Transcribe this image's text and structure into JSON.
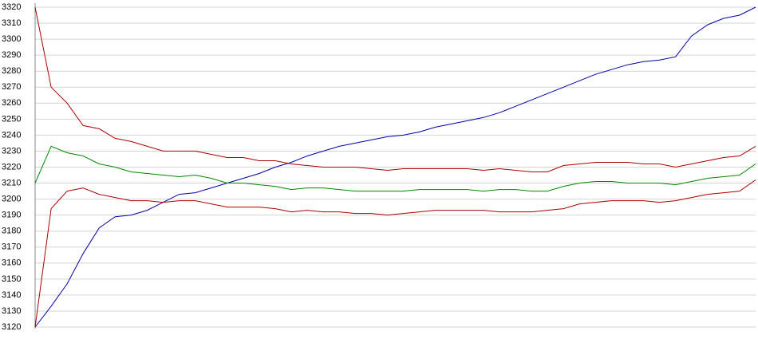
{
  "chart_data": {
    "type": "line",
    "categories": [
      null,
      null,
      null,
      null,
      null,
      null,
      null,
      null,
      null,
      null,
      null,
      null,
      null,
      null,
      null,
      null,
      null,
      null,
      null,
      null,
      null,
      null,
      null,
      null,
      null,
      null,
      null,
      null,
      null,
      null,
      null,
      null,
      null,
      null,
      null,
      null,
      null,
      null,
      null,
      null,
      null,
      null,
      null,
      null,
      null,
      null
    ],
    "series": [
      {
        "color": "#0000aa",
        "values": [
          3120,
          3133,
          3147,
          3166,
          3182,
          3189,
          3190,
          3193,
          3198,
          3203,
          3204,
          3207,
          3210,
          3213,
          3216,
          3220,
          3223,
          3227,
          3230,
          3233,
          3235,
          3237,
          3239,
          3240,
          3242,
          3245,
          3247,
          3249,
          3251,
          3254,
          3258,
          3262,
          3266,
          3270,
          3274,
          3278,
          3281,
          3284,
          3286,
          3287,
          3289,
          3302,
          3309,
          3313,
          3315,
          3320
        ]
      },
      {
        "color": "#aa0000",
        "values": [
          3320,
          3270,
          3260,
          3246,
          3244,
          3238,
          3236,
          3233,
          3230,
          3230,
          3230,
          3228,
          3226,
          3226,
          3224,
          3224,
          3222,
          3221,
          3220,
          3220,
          3220,
          3219,
          3218,
          3219,
          3219,
          3219,
          3219,
          3219,
          3218,
          3219,
          3218,
          3217,
          3217,
          3221,
          3222,
          3223,
          3223,
          3223,
          3222,
          3222,
          3220,
          3222,
          3224,
          3226,
          3227,
          3233
        ]
      },
      {
        "color": "#008800",
        "values": [
          3210,
          3233,
          3229,
          3227,
          3222,
          3220,
          3217,
          3216,
          3215,
          3214,
          3215,
          3213,
          3210,
          3210,
          3209,
          3208,
          3206,
          3207,
          3207,
          3206,
          3205,
          3205,
          3205,
          3205,
          3206,
          3206,
          3206,
          3206,
          3205,
          3206,
          3206,
          3205,
          3205,
          3208,
          3210,
          3211,
          3211,
          3210,
          3210,
          3210,
          3209,
          3211,
          3213,
          3214,
          3215,
          3222
        ]
      },
      {
        "color": "#aa0000",
        "values": [
          3120,
          3194,
          3205,
          3207,
          3203,
          3201,
          3199,
          3199,
          3198,
          3199,
          3199,
          3197,
          3195,
          3195,
          3195,
          3194,
          3192,
          3193,
          3192,
          3192,
          3191,
          3191,
          3190,
          3191,
          3192,
          3193,
          3193,
          3193,
          3193,
          3192,
          3192,
          3192,
          3193,
          3194,
          3197,
          3198,
          3199,
          3199,
          3199,
          3198,
          3199,
          3201,
          3203,
          3204,
          3205,
          3212
        ]
      }
    ],
    "ylim": [
      3120,
      3320
    ],
    "yticks": [
      3120,
      3130,
      3140,
      3150,
      3160,
      3170,
      3180,
      3190,
      3200,
      3210,
      3220,
      3230,
      3240,
      3250,
      3260,
      3270,
      3280,
      3290,
      3300,
      3310,
      3320
    ],
    "grid": true
  }
}
